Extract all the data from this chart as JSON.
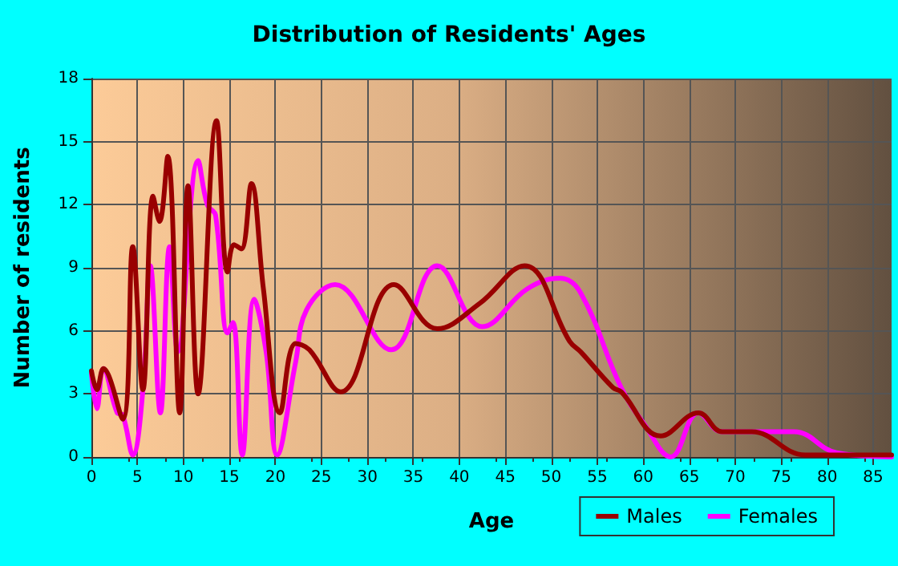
{
  "chart_data": {
    "type": "line",
    "title": "Distribution of Residents' Ages",
    "xlabel": "Age",
    "ylabel": "Number of residents",
    "xlim": [
      0,
      87
    ],
    "xticks": [
      0,
      5,
      10,
      15,
      20,
      25,
      30,
      35,
      40,
      45,
      50,
      55,
      60,
      65,
      70,
      75,
      80,
      85
    ],
    "ylim": [
      0,
      18
    ],
    "yticks": [
      0,
      3,
      6,
      9,
      12,
      15,
      18
    ],
    "grid": true,
    "legend": "bottom right",
    "marker": "none",
    "line_style": "solid",
    "series": [
      {
        "name": "Males",
        "color": "#990000",
        "x": [
          0,
          0.6,
          1.3,
          3.4,
          4.5,
          5.6,
          6.7,
          7.4,
          8.3,
          9.6,
          10.5,
          11.6,
          13.6,
          14.8,
          15.5,
          16.3,
          17.4,
          18.7,
          20.5,
          22.2,
          23.7,
          27.1,
          32.9,
          37.6,
          42.2,
          47.1,
          52,
          53.2,
          56.7,
          57.6,
          61.9,
          66,
          68.6,
          71.8,
          77.6,
          87
        ],
        "values": [
          4.1,
          3.2,
          4.2,
          1.8,
          10,
          3.2,
          12.4,
          11.2,
          14.3,
          2.1,
          12.9,
          3,
          16,
          8.8,
          10.1,
          9.9,
          13,
          8,
          2.1,
          5.4,
          5.1,
          3.1,
          8.2,
          6.1,
          7.3,
          9.1,
          5.5,
          5,
          3.3,
          3.1,
          1,
          2.1,
          1.2,
          1.2,
          0.1,
          0.1
        ]
      },
      {
        "name": "Females",
        "color": "#ff00ff",
        "x": [
          0,
          0.6,
          1.3,
          2.8,
          3.4,
          4.5,
          5.6,
          6.4,
          7.5,
          8.5,
          9.4,
          11.6,
          12.6,
          13.5,
          14.8,
          15.4,
          16.4,
          17.7,
          19,
          20.2,
          22.2,
          23.4,
          26.5,
          32.6,
          37.6,
          42.5,
          47.4,
          50.9,
          53.2,
          57.6,
          60.2,
          63,
          66,
          68.6,
          76.4,
          81,
          87
        ],
        "values": [
          4,
          2.3,
          4.2,
          2.1,
          2,
          0.1,
          3.2,
          9.1,
          2.1,
          10,
          5,
          14.1,
          12,
          11.5,
          5.9,
          6.4,
          0.1,
          7.5,
          5,
          0.1,
          4.5,
          7,
          8.2,
          5.1,
          9.1,
          6.2,
          8,
          8.5,
          7.8,
          3.3,
          1.5,
          0,
          2.1,
          1.2,
          1.2,
          0.2,
          0
        ]
      }
    ]
  }
}
